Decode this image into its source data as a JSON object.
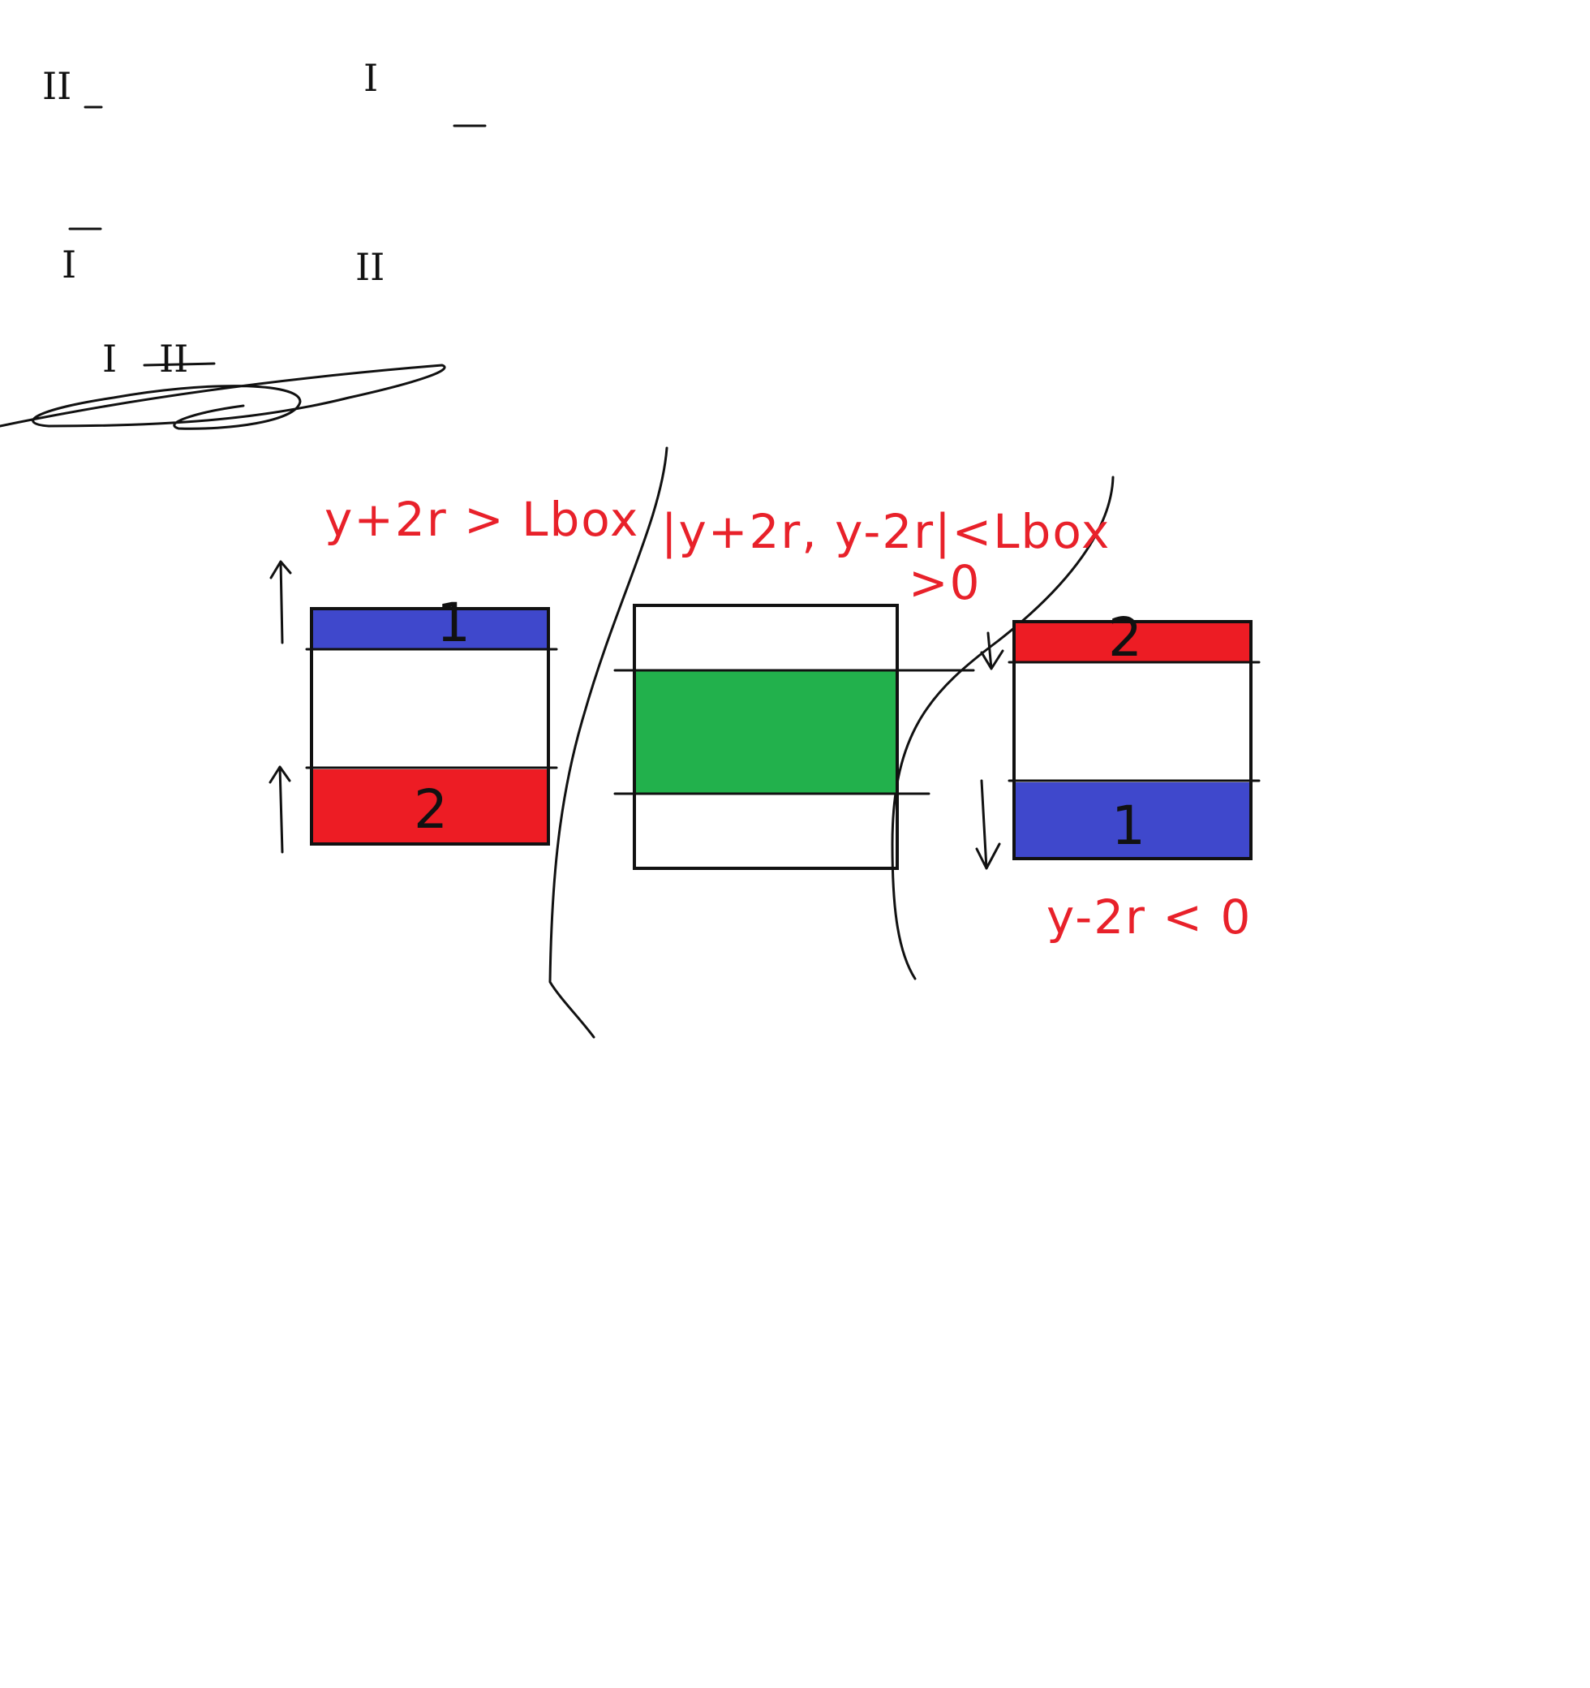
{
  "colors": {
    "blue": "#3f48cc",
    "red": "#ed1c24",
    "green": "#22b14c",
    "ink": "#111111",
    "annotation": "#e8212a"
  },
  "sketch": {
    "roman_labels": [
      "II",
      "I",
      "I",
      "II",
      "I",
      "II"
    ]
  },
  "annotations": {
    "left_condition": "y+2r > Lbox",
    "middle_condition_line1": "|y+2r, y-2r|<Lbox",
    "middle_condition_line2": ">0",
    "right_condition": "y-2r < 0"
  },
  "boxes": {
    "left": {
      "bands": [
        {
          "color": "blue",
          "label": "1"
        },
        {
          "color": "red",
          "label": "2"
        }
      ],
      "arrow_direction": "up"
    },
    "middle": {
      "bands": [
        {
          "color": "green",
          "label": ""
        }
      ]
    },
    "right": {
      "bands": [
        {
          "color": "red",
          "label": "2"
        },
        {
          "color": "blue",
          "label": "1"
        }
      ],
      "arrow_direction": "down"
    }
  }
}
